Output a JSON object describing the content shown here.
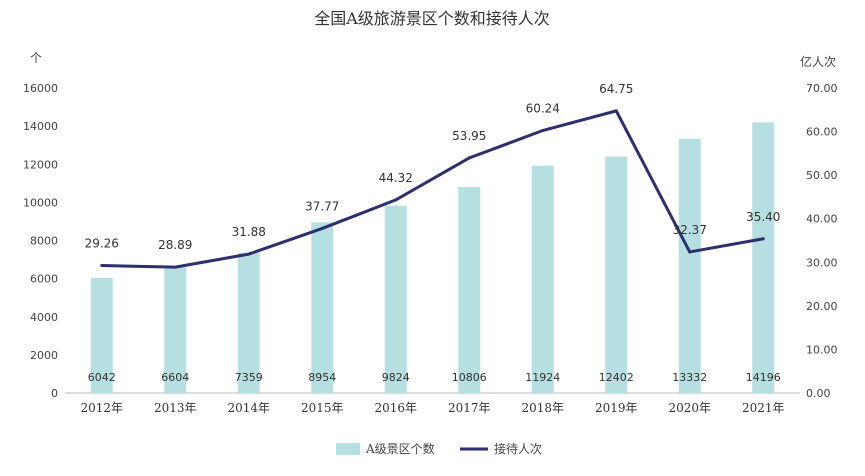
{
  "chart_data": {
    "type": "bar",
    "title": "全国A级旅游景区个数和接待人次",
    "y_left_unit": "个",
    "y_right_unit": "亿人次",
    "categories": [
      "2012年",
      "2013年",
      "2014年",
      "2015年",
      "2016年",
      "2017年",
      "2018年",
      "2019年",
      "2020年",
      "2021年"
    ],
    "series": [
      {
        "name": "A级景区个数",
        "type": "bar",
        "axis": "left",
        "color": "#b6dfe2",
        "values": [
          6042,
          6604,
          7359,
          8954,
          9824,
          10806,
          11924,
          12402,
          13332,
          14196
        ]
      },
      {
        "name": "接待人次",
        "type": "line",
        "axis": "right",
        "color": "#2e2f6e",
        "values": [
          29.26,
          28.89,
          31.88,
          37.77,
          44.32,
          53.95,
          60.24,
          64.75,
          32.37,
          35.4
        ]
      }
    ],
    "bar_labels": [
      "6042",
      "6604",
      "7359",
      "8954",
      "9824",
      "10806",
      "11924",
      "12402",
      "13332",
      "14196"
    ],
    "line_labels": [
      "29.26",
      "28.89",
      "31.88",
      "37.77",
      "44.32",
      "53.95",
      "60.24",
      "64.75",
      "32.37",
      "35.40"
    ],
    "y_left_ticks": [
      "0",
      "2000",
      "4000",
      "6000",
      "8000",
      "10000",
      "12000",
      "14000",
      "16000"
    ],
    "y_right_ticks": [
      "0.00",
      "10.00",
      "20.00",
      "30.00",
      "40.00",
      "50.00",
      "60.00",
      "70.00"
    ],
    "ylim_left": [
      0,
      16000
    ],
    "ylim_right": [
      0,
      70
    ],
    "grid": false,
    "legend_position": "bottom"
  }
}
